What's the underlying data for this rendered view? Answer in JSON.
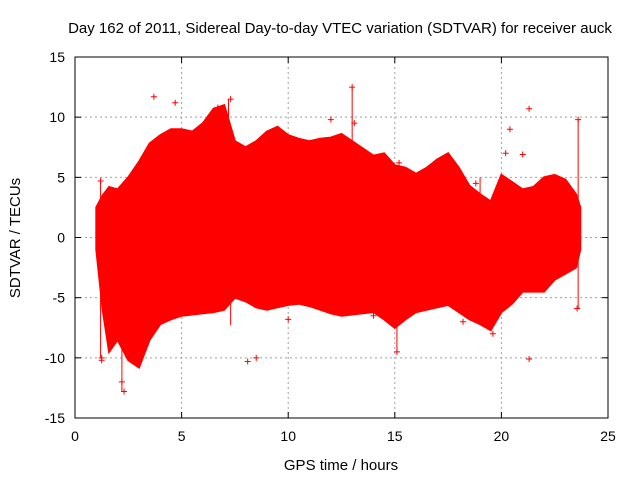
{
  "chart_data": {
    "type": "scatter",
    "title": "Day 162 of 2011, Sidereal Day-to-day VTEC variation (SDTVAR) for receiver auck",
    "xlabel": "GPS time / hours",
    "ylabel": "SDTVAR / TECUs",
    "xlim": [
      0,
      25
    ],
    "ylim": [
      -15,
      15
    ],
    "xticks": [
      0,
      5,
      10,
      15,
      20,
      25
    ],
    "yticks": [
      -15,
      -10,
      -5,
      0,
      5,
      10,
      15
    ],
    "grid": true,
    "series_color": "#ff0000",
    "marker": "plus",
    "envelope": {
      "x": [
        1.0,
        1.3,
        1.6,
        2.0,
        2.5,
        3.0,
        3.5,
        4.0,
        4.5,
        5.0,
        5.5,
        6.0,
        6.5,
        7.0,
        7.5,
        8.0,
        8.5,
        9.0,
        9.5,
        10.0,
        10.5,
        11.0,
        11.5,
        12.0,
        12.5,
        13.0,
        13.5,
        14.0,
        14.5,
        15.0,
        15.5,
        16.0,
        16.5,
        17.0,
        17.5,
        18.0,
        18.5,
        19.0,
        19.5,
        20.0,
        20.5,
        21.0,
        21.5,
        22.0,
        22.5,
        23.0,
        23.5,
        23.7
      ],
      "upper": [
        2.5,
        3.5,
        4.2,
        4.0,
        5.0,
        6.3,
        7.8,
        8.5,
        9.0,
        9.0,
        8.8,
        9.5,
        10.7,
        11.0,
        8.0,
        7.5,
        8.0,
        8.8,
        9.2,
        8.5,
        8.2,
        8.0,
        8.2,
        8.3,
        8.6,
        8.0,
        7.4,
        6.8,
        7.0,
        6.0,
        5.8,
        5.3,
        5.8,
        6.5,
        7.0,
        5.8,
        4.3,
        3.6,
        3.0,
        5.2,
        4.6,
        4.0,
        4.2,
        5.0,
        5.2,
        4.8,
        3.6,
        2.5
      ],
      "lower": [
        -1.0,
        -6.0,
        -9.5,
        -8.5,
        -10.2,
        -10.8,
        -8.5,
        -7.2,
        -6.8,
        -6.5,
        -6.4,
        -6.3,
        -6.2,
        -6.0,
        -5.0,
        -5.3,
        -5.8,
        -6.0,
        -5.8,
        -5.6,
        -5.5,
        -5.7,
        -6.0,
        -6.3,
        -6.5,
        -6.4,
        -6.3,
        -6.2,
        -6.8,
        -7.5,
        -6.8,
        -6.2,
        -6.0,
        -5.8,
        -5.6,
        -6.2,
        -6.8,
        -7.2,
        -7.7,
        -6.2,
        -5.5,
        -4.5,
        -4.5,
        -4.5,
        -3.5,
        -3.0,
        -2.5,
        -1.0
      ]
    },
    "outliers": {
      "x": [
        1.2,
        1.25,
        3.7,
        4.7,
        8.1,
        8.5,
        12.0,
        13.0,
        13.1,
        15.2,
        17.3,
        18.2,
        18.8,
        19.0,
        20.2,
        20.4,
        21.3,
        21.3,
        21.0,
        23.6,
        23.55,
        2.3,
        2.2,
        1.25,
        7.3,
        6.7,
        10.0,
        14.0,
        15.1,
        19.6
      ],
      "y": [
        4.7,
        -10.2,
        11.7,
        11.2,
        -10.3,
        -10.0,
        9.8,
        12.5,
        9.5,
        6.2,
        -5.5,
        -7.0,
        4.5,
        -6.5,
        7.0,
        9.0,
        10.7,
        -10.1,
        6.9,
        9.8,
        -5.9,
        -12.8,
        -12.0,
        -10.0,
        11.5,
        10.8,
        -6.8,
        -6.5,
        -9.5,
        -8.0
      ]
    }
  }
}
